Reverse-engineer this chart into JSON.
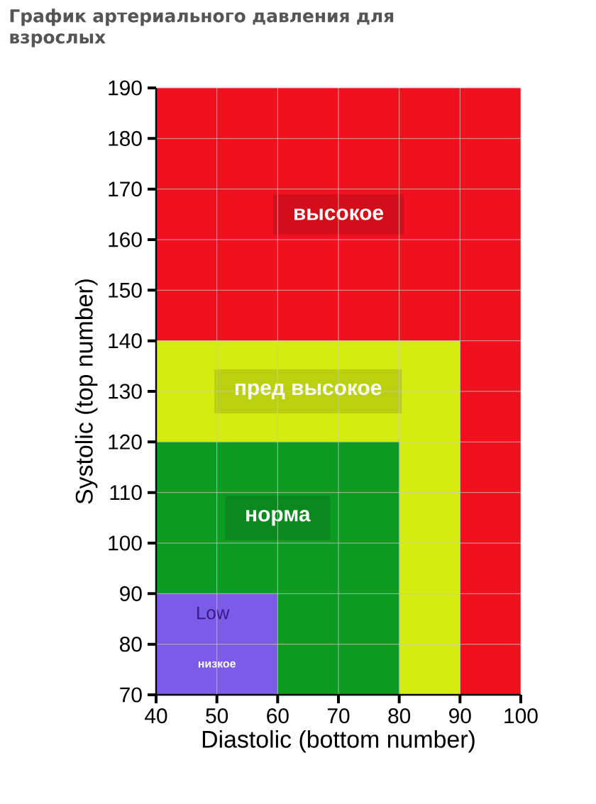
{
  "chart_data": {
    "type": "area",
    "title": "График артериального давления для взрослых",
    "xlabel": "Diastolic (bottom number)",
    "ylabel": "Systolic (top number)",
    "xlim": [
      40,
      100
    ],
    "ylim": [
      70,
      190
    ],
    "xticks": [
      40,
      50,
      60,
      70,
      80,
      90,
      100
    ],
    "yticks": [
      70,
      80,
      90,
      100,
      110,
      120,
      130,
      140,
      150,
      160,
      170,
      180,
      190
    ],
    "grid": true,
    "bands": [
      {
        "axis": "y",
        "from": 70,
        "to": 190,
        "label": "высокое",
        "color": "#f0101e"
      }
    ],
    "series": [
      {
        "name": "пред высокое",
        "color": "#d4ec10",
        "x": [
          40,
          90
        ],
        "values": [
          140,
          140
        ]
      },
      {
        "name": "норма",
        "color": "#0c9c22",
        "x": [
          40,
          80
        ],
        "values": [
          120,
          120
        ]
      },
      {
        "name": "низкое",
        "color": "#7b5ce8",
        "x": [
          40,
          60
        ],
        "values": [
          90,
          90
        ]
      }
    ],
    "annotations": [
      "Low"
    ]
  }
}
